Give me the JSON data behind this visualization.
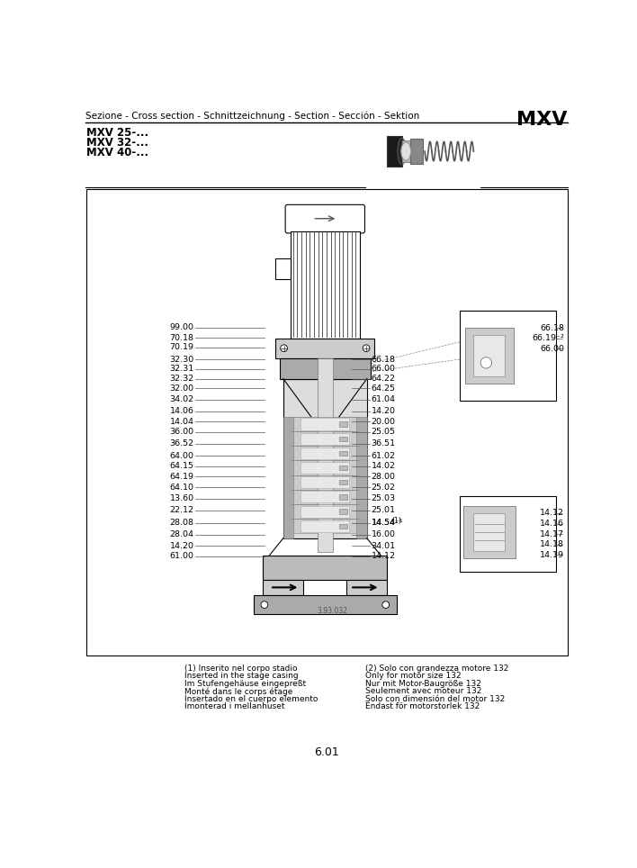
{
  "title_left": "Sezione - Cross section - Schnittzeichnung - Section - Sección - Sektion",
  "title_right": "MXV",
  "subtitle_lines": [
    "MXV 25-...",
    "MXV 32-...",
    "MXV 40-..."
  ],
  "left_labels": [
    [
      "99.00",
      322
    ],
    [
      "70.18",
      337
    ],
    [
      "70.19",
      351
    ],
    [
      "32.30",
      368
    ],
    [
      "32.31",
      382
    ],
    [
      "32.32",
      396
    ],
    [
      "32.00",
      410
    ],
    [
      "34.02",
      426
    ],
    [
      "14.06",
      443
    ],
    [
      "14.04",
      458
    ],
    [
      "36.00",
      473
    ],
    [
      "36.52",
      490
    ],
    [
      "64.00",
      507
    ],
    [
      "64.15",
      522
    ],
    [
      "64.19",
      537
    ],
    [
      "64.10",
      553
    ],
    [
      "13.60",
      569
    ],
    [
      "22.12",
      586
    ],
    [
      "28.08",
      604
    ],
    [
      "28.04",
      621
    ],
    [
      "14.20",
      637
    ],
    [
      "61.00",
      652
    ]
  ],
  "right_labels_main": [
    [
      "66.18",
      368
    ],
    [
      "66.00",
      382
    ],
    [
      "64.22",
      396
    ],
    [
      "64.25",
      410
    ],
    [
      "61.04",
      426
    ],
    [
      "14.20",
      443
    ],
    [
      "20.00",
      458
    ],
    [
      "25.05",
      473
    ],
    [
      "36.51",
      490
    ],
    [
      "61.02",
      507
    ],
    [
      "14.02",
      522
    ],
    [
      "28.00",
      537
    ],
    [
      "25.02",
      553
    ],
    [
      "25.03",
      569
    ],
    [
      "25.01",
      586
    ],
    [
      "14.54⁻¹",
      604
    ],
    [
      "16.00",
      621
    ],
    [
      "34.01",
      637
    ],
    [
      "14.12",
      652
    ]
  ],
  "right_side_top_labels": [
    [
      "66.18",
      323
    ],
    [
      "66.19⁻²",
      338
    ],
    [
      "66.00",
      353
    ]
  ],
  "right_side_bottom_labels": [
    [
      "14.12",
      590
    ],
    [
      "14.16",
      605
    ],
    [
      "14.17",
      620
    ],
    [
      "14.18",
      635
    ],
    [
      "14.19",
      650
    ]
  ],
  "footnote1_lines": [
    "(1) Inserito nel corpo stadio",
    "Inserted in the stage casing",
    "Im Stufengehäuse eingepreßt",
    "Monté dans le corps étage",
    "Insertado en el cuerpo elemento",
    "Imonterad i mellanhuset"
  ],
  "footnote2_lines": [
    "(2) Solo con grandezza motore 132",
    "Only for motor size 132",
    "Nur mit Motor-Baugröße 132",
    "Seulement avec moteur 132",
    "Solo con dimensión del motor 132",
    "Endast för motorstorlek 132"
  ],
  "page_number": "6.01",
  "bg_color": "#ffffff",
  "text_color": "#000000",
  "line_color": "#000000"
}
